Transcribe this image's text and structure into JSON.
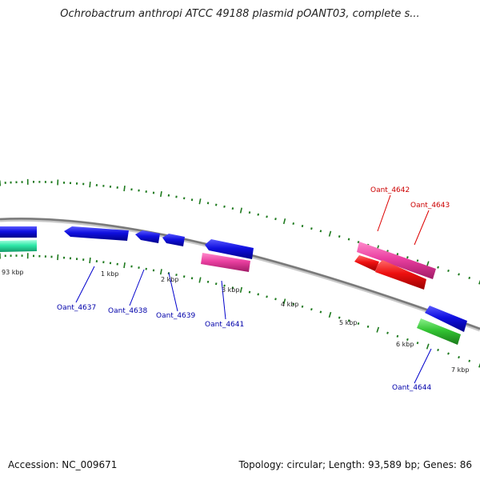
{
  "title": "Ochrobactrum anthropi ATCC 49188 plasmid pOANT03, complete s...",
  "footer": {
    "accession": "Accession: NC_009671",
    "summary": "Topology: circular; Length: 93,589 bp; Genes: 86"
  },
  "colors": {
    "backbone": "#7a7a7a",
    "ticks": "#1e7a1e",
    "blue_gene": "#1414dc",
    "pink_gene": "#e8409c",
    "red_gene": "#ee1111",
    "green_gene": "#30c030",
    "teal_gene": "#2ee8a8",
    "label_blue": "#0000aa",
    "label_red": "#cc0000"
  },
  "tick_labels": [
    "93 kbp",
    "1 kbp",
    "2 kbp",
    "3 kbp",
    "4 kbp",
    "5 kbp",
    "6 kbp",
    "7 kbp"
  ],
  "gene_labels": [
    {
      "text": "Oant_4637",
      "color": "blue"
    },
    {
      "text": "Oant_4638",
      "color": "blue"
    },
    {
      "text": "Oant_4639",
      "color": "blue"
    },
    {
      "text": "Oant_4641",
      "color": "blue"
    },
    {
      "text": "Oant_4642",
      "color": "red"
    },
    {
      "text": "Oant_4643",
      "color": "red"
    },
    {
      "text": "Oant_4644",
      "color": "blue"
    }
  ]
}
